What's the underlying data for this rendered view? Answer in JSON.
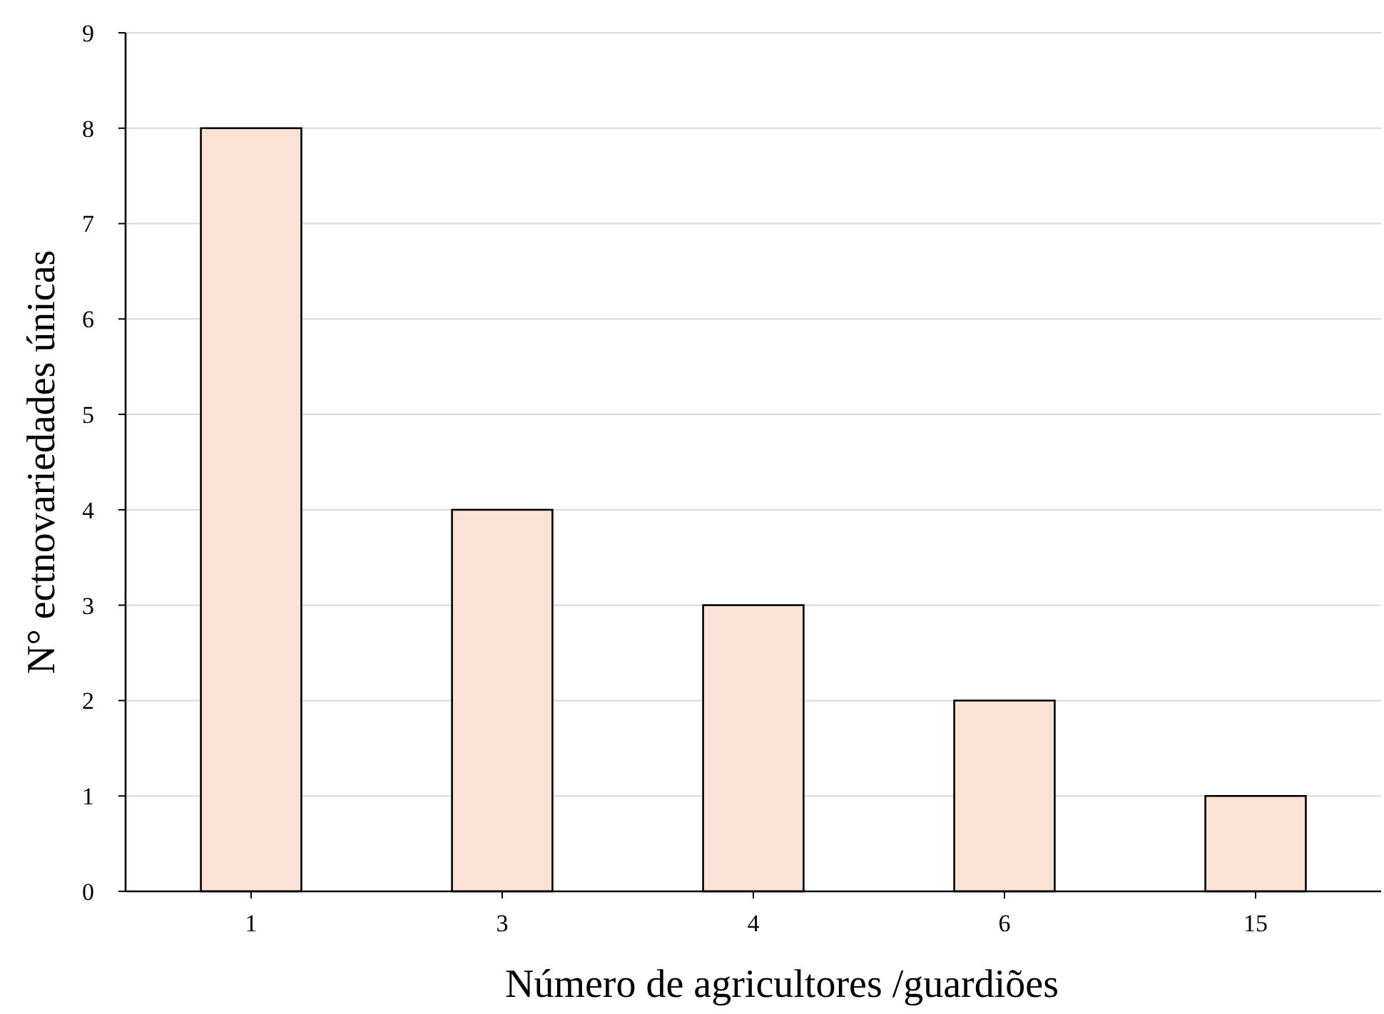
{
  "chart_data": {
    "type": "bar",
    "xlabel": "Número de agricultores /guardiões",
    "ylabel": "N° ectnovariedades únicas",
    "categories": [
      "1",
      "3",
      "4",
      "6",
      "15"
    ],
    "values": [
      8,
      4,
      3,
      2,
      1
    ],
    "color": "#fae3d5",
    "ylim": [
      0,
      9
    ],
    "yticks": [
      0,
      1,
      2,
      3,
      4,
      5,
      6,
      7,
      8,
      9
    ],
    "grid": "y"
  }
}
